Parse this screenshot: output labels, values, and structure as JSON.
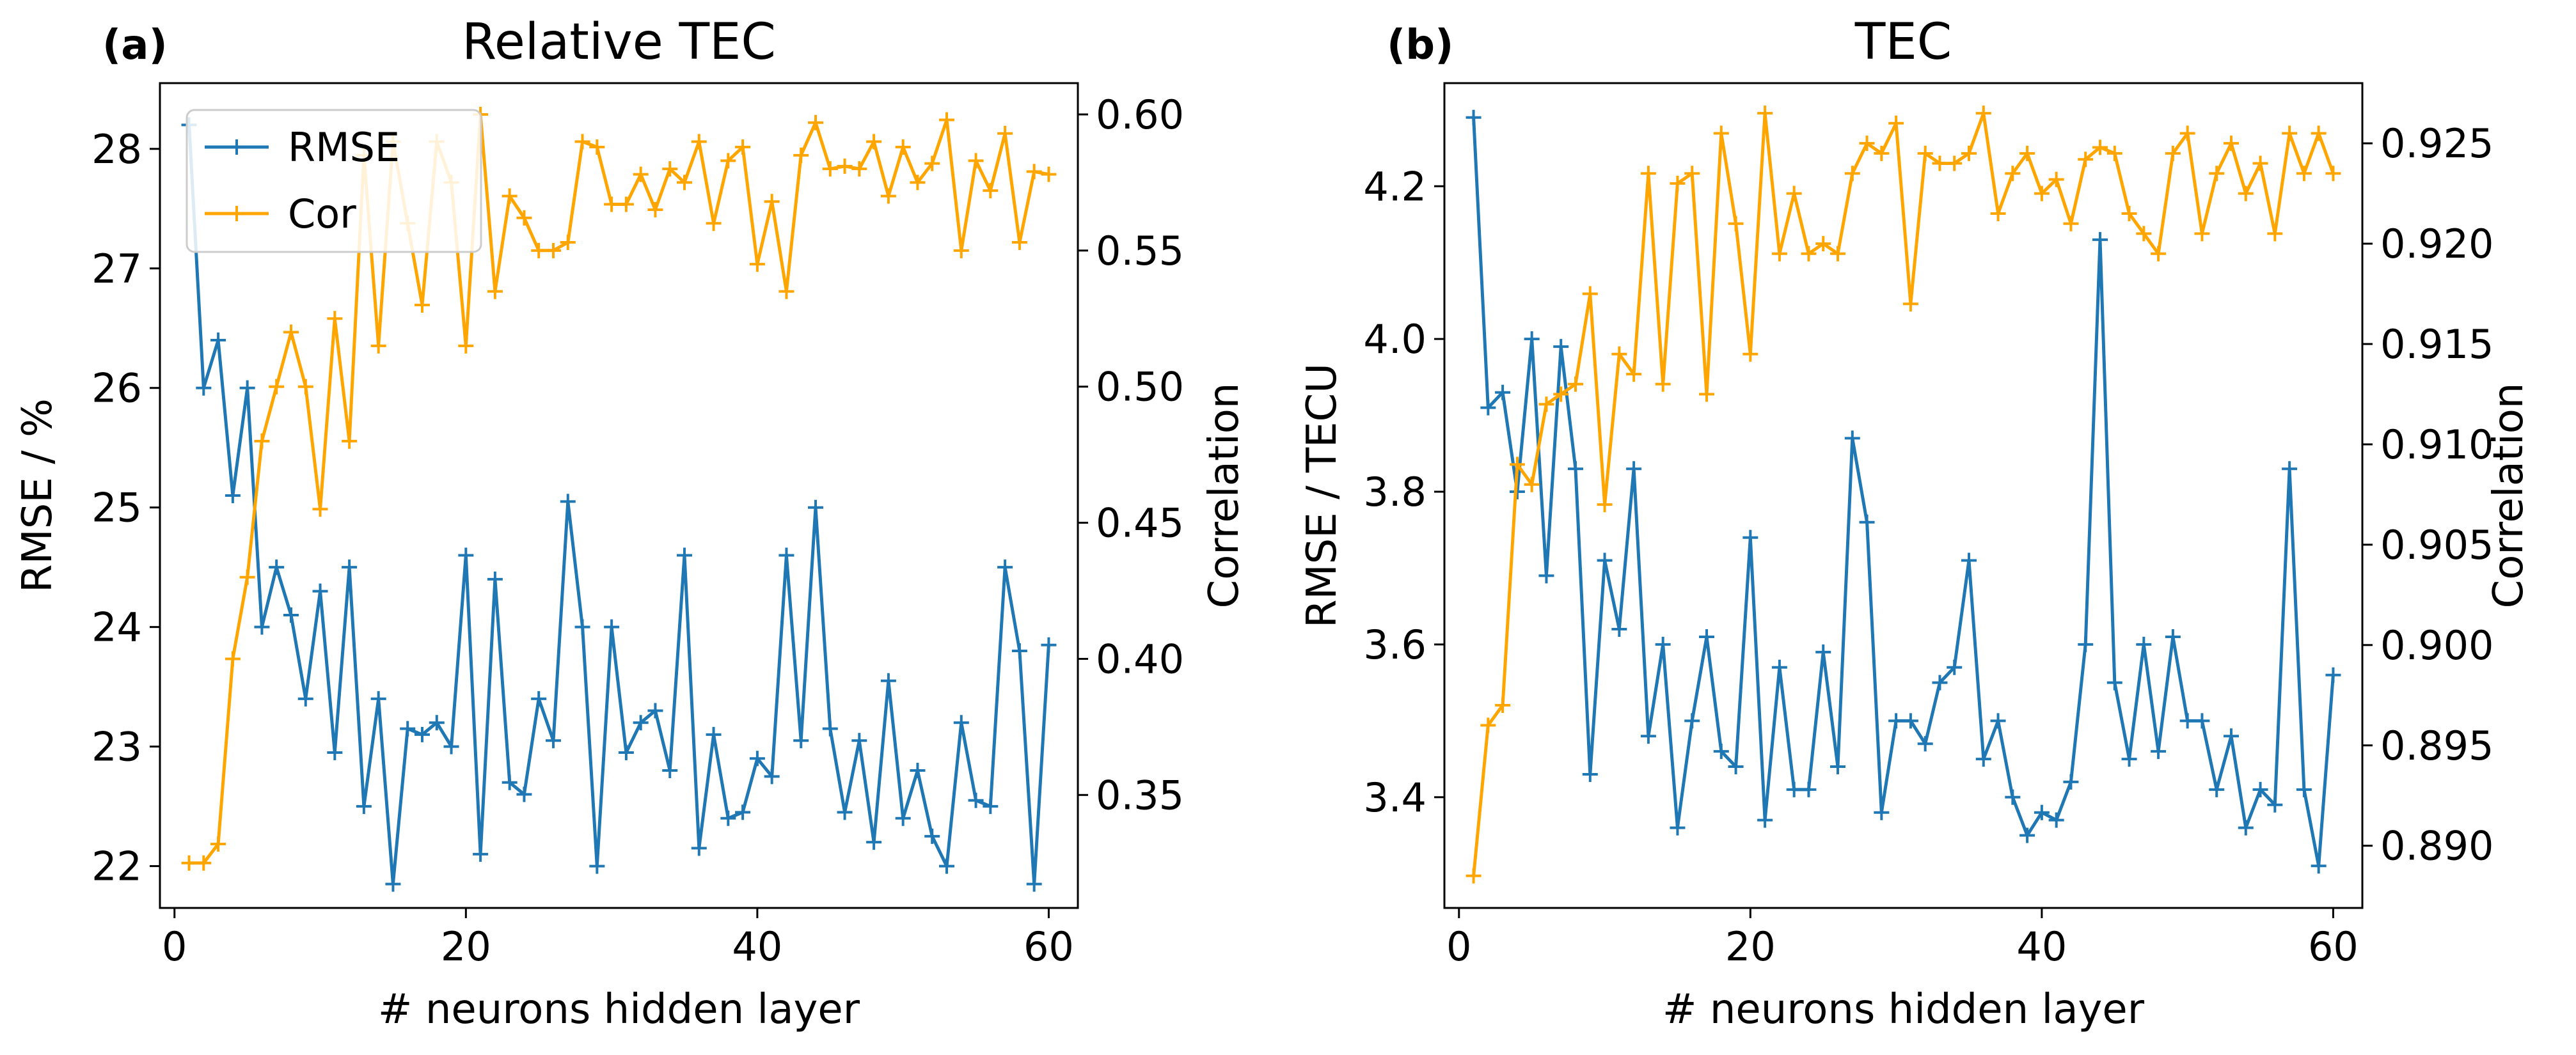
{
  "chart_data": [
    {
      "type": "line",
      "panel_label": "(a)",
      "title": "Relative TEC",
      "xlabel": "# neurons hidden layer",
      "ylabel": "RMSE / %",
      "y2label": "Correlation",
      "xlim": [
        -1,
        62
      ],
      "ylim": [
        21.65,
        28.55
      ],
      "y2lim": [
        0.3085,
        0.6115
      ],
      "x_ticks": [
        0,
        20,
        40,
        60
      ],
      "y_ticks": [
        22,
        23,
        24,
        25,
        26,
        27,
        28
      ],
      "y2_ticks": [
        0.35,
        0.4,
        0.45,
        0.5,
        0.55,
        0.6
      ],
      "legend": {
        "position": "top-left",
        "entries": [
          "RMSE",
          "Cor"
        ]
      },
      "colors": {
        "RMSE": "#1f77b4",
        "Cor": "#ffa500"
      },
      "x": [
        1,
        2,
        3,
        4,
        5,
        6,
        7,
        8,
        9,
        10,
        11,
        12,
        13,
        14,
        15,
        16,
        17,
        18,
        19,
        20,
        21,
        22,
        23,
        24,
        25,
        26,
        27,
        28,
        29,
        30,
        31,
        32,
        33,
        34,
        35,
        36,
        37,
        38,
        39,
        40,
        41,
        42,
        43,
        44,
        45,
        46,
        47,
        48,
        49,
        50,
        51,
        52,
        53,
        54,
        55,
        56,
        57,
        58,
        59,
        60
      ],
      "series": [
        {
          "name": "RMSE",
          "axis": "left",
          "values": [
            28.2,
            26.0,
            26.4,
            25.1,
            26.0,
            24.0,
            24.5,
            24.1,
            23.4,
            24.3,
            22.95,
            24.5,
            22.5,
            23.4,
            21.85,
            23.15,
            23.1,
            23.2,
            23.0,
            24.6,
            22.1,
            24.4,
            22.7,
            22.6,
            23.4,
            23.05,
            25.05,
            24.0,
            22.0,
            24.0,
            22.95,
            23.2,
            23.3,
            22.8,
            24.6,
            22.15,
            23.1,
            22.4,
            22.45,
            22.9,
            22.75,
            24.6,
            23.05,
            25.0,
            23.15,
            22.45,
            23.05,
            22.2,
            23.55,
            22.4,
            22.8,
            22.25,
            22.0,
            23.2,
            22.55,
            22.5,
            24.5,
            23.8,
            21.85,
            23.85
          ]
        },
        {
          "name": "Cor",
          "axis": "right",
          "values": [
            0.325,
            0.325,
            0.332,
            0.4,
            0.43,
            0.48,
            0.5,
            0.52,
            0.5,
            0.455,
            0.525,
            0.48,
            0.585,
            0.515,
            0.59,
            0.56,
            0.53,
            0.59,
            0.575,
            0.515,
            0.6,
            0.535,
            0.57,
            0.562,
            0.55,
            0.55,
            0.553,
            0.59,
            0.588,
            0.567,
            0.567,
            0.578,
            0.565,
            0.58,
            0.575,
            0.59,
            0.56,
            0.583,
            0.588,
            0.545,
            0.568,
            0.535,
            0.585,
            0.597,
            0.58,
            0.581,
            0.58,
            0.59,
            0.57,
            0.588,
            0.575,
            0.582,
            0.598,
            0.55,
            0.583,
            0.572,
            0.593,
            0.553,
            0.579,
            0.578
          ]
        }
      ]
    },
    {
      "type": "line",
      "panel_label": "(b)",
      "title": "TEC",
      "xlabel": "# neurons hidden layer",
      "ylabel": "RMSE / TECU",
      "y2label": "Correlation",
      "xlim": [
        -1,
        62
      ],
      "ylim": [
        3.255,
        4.335
      ],
      "y2lim": [
        0.8869,
        0.928
      ],
      "x_ticks": [
        0,
        20,
        40,
        60
      ],
      "y_ticks": [
        3.4,
        3.6,
        3.8,
        4.0,
        4.2
      ],
      "y2_ticks": [
        0.89,
        0.895,
        0.9,
        0.905,
        0.91,
        0.915,
        0.92,
        0.925
      ],
      "colors": {
        "RMSE": "#1f77b4",
        "Cor": "#ffa500"
      },
      "x": [
        1,
        2,
        3,
        4,
        5,
        6,
        7,
        8,
        9,
        10,
        11,
        12,
        13,
        14,
        15,
        16,
        17,
        18,
        19,
        20,
        21,
        22,
        23,
        24,
        25,
        26,
        27,
        28,
        29,
        30,
        31,
        32,
        33,
        34,
        35,
        36,
        37,
        38,
        39,
        40,
        41,
        42,
        43,
        44,
        45,
        46,
        47,
        48,
        49,
        50,
        51,
        52,
        53,
        54,
        55,
        56,
        57,
        58,
        59,
        60
      ],
      "series": [
        {
          "name": "RMSE",
          "axis": "left",
          "values": [
            4.29,
            3.91,
            3.93,
            3.8,
            4.0,
            3.69,
            3.99,
            3.83,
            3.43,
            3.71,
            3.62,
            3.83,
            3.48,
            3.6,
            3.36,
            3.5,
            3.61,
            3.46,
            3.44,
            3.74,
            3.37,
            3.57,
            3.41,
            3.41,
            3.59,
            3.44,
            3.87,
            3.76,
            3.38,
            3.5,
            3.5,
            3.47,
            3.55,
            3.57,
            3.71,
            3.45,
            3.5,
            3.4,
            3.35,
            3.38,
            3.37,
            3.42,
            3.6,
            4.13,
            3.55,
            3.45,
            3.6,
            3.46,
            3.61,
            3.5,
            3.5,
            3.41,
            3.48,
            3.36,
            3.41,
            3.39,
            3.83,
            3.41,
            3.31,
            3.56
          ]
        },
        {
          "name": "Cor",
          "axis": "right",
          "values": [
            0.8885,
            0.896,
            0.897,
            0.909,
            0.908,
            0.912,
            0.9125,
            0.913,
            0.9175,
            0.907,
            0.9145,
            0.9135,
            0.9235,
            0.913,
            0.923,
            0.9235,
            0.9125,
            0.9255,
            0.921,
            0.9145,
            0.9265,
            0.9195,
            0.9225,
            0.9195,
            0.92,
            0.9195,
            0.9235,
            0.925,
            0.9245,
            0.926,
            0.917,
            0.9245,
            0.924,
            0.924,
            0.9245,
            0.9265,
            0.9215,
            0.9235,
            0.9245,
            0.9225,
            0.9232,
            0.921,
            0.9242,
            0.9248,
            0.9245,
            0.9215,
            0.9205,
            0.9195,
            0.9245,
            0.9255,
            0.9205,
            0.9235,
            0.925,
            0.9225,
            0.924,
            0.9205,
            0.9255,
            0.9235,
            0.9255,
            0.9235
          ]
        }
      ]
    }
  ]
}
